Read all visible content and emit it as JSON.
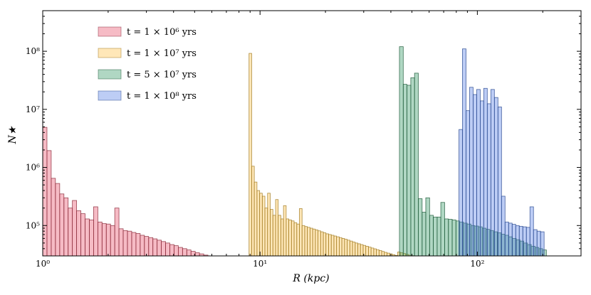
{
  "chart_data": {
    "type": "histogram",
    "title": "",
    "xlabel": "R (kpc)",
    "ylabel": "N★",
    "xscale": "log",
    "yscale": "log",
    "xlim": [
      1,
      300
    ],
    "ylim": [
      30000,
      500000000
    ],
    "x_ticks": [
      {
        "value": 1,
        "label": "10⁰"
      },
      {
        "value": 10,
        "label": "10¹"
      },
      {
        "value": 100,
        "label": "10²"
      }
    ],
    "y_ticks": [
      {
        "value": 100000,
        "label": "10⁵"
      },
      {
        "value": 1000000,
        "label": "10⁶"
      },
      {
        "value": 10000000,
        "label": "10⁷"
      },
      {
        "value": 100000000,
        "label": "10⁸"
      }
    ],
    "grid": false,
    "legend_position": "top-left",
    "series": [
      {
        "name": "t = 1 × 10⁶ yrs",
        "color": "#e8566f",
        "edge": "#8b2a3a",
        "bins": [
          [
            1.0,
            1.046,
            4900000
          ],
          [
            1.046,
            1.094,
            1950000
          ],
          [
            1.094,
            1.144,
            650000
          ],
          [
            1.144,
            1.197,
            530000
          ],
          [
            1.197,
            1.252,
            350000
          ],
          [
            1.252,
            1.309,
            300000
          ],
          [
            1.309,
            1.369,
            200000
          ],
          [
            1.369,
            1.432,
            270000
          ],
          [
            1.432,
            1.498,
            180000
          ],
          [
            1.498,
            1.567,
            160000
          ],
          [
            1.567,
            1.639,
            130000
          ],
          [
            1.639,
            1.714,
            125000
          ],
          [
            1.714,
            1.793,
            210000
          ],
          [
            1.793,
            1.875,
            115000
          ],
          [
            1.875,
            1.961,
            108000
          ],
          [
            1.961,
            2.051,
            106000
          ],
          [
            2.051,
            2.145,
            100000
          ],
          [
            2.145,
            2.243,
            200000
          ],
          [
            2.243,
            2.346,
            88000
          ],
          [
            2.346,
            2.454,
            82000
          ],
          [
            2.454,
            2.567,
            80000
          ],
          [
            2.567,
            2.685,
            76000
          ],
          [
            2.685,
            2.808,
            73000
          ],
          [
            2.808,
            2.937,
            68000
          ],
          [
            2.937,
            3.072,
            65000
          ],
          [
            3.072,
            3.213,
            62000
          ],
          [
            3.213,
            3.36,
            59000
          ],
          [
            3.36,
            3.514,
            56000
          ],
          [
            3.514,
            3.676,
            53000
          ],
          [
            3.676,
            3.844,
            50000
          ],
          [
            3.844,
            4.021,
            47000
          ],
          [
            4.021,
            4.206,
            45000
          ],
          [
            4.206,
            4.399,
            42000
          ],
          [
            4.399,
            4.601,
            40000
          ],
          [
            4.601,
            4.812,
            38000
          ],
          [
            4.812,
            5.033,
            36000
          ],
          [
            5.033,
            5.264,
            34000
          ],
          [
            5.264,
            5.506,
            32500
          ],
          [
            5.506,
            5.759,
            31000
          ]
        ]
      },
      {
        "name": "t = 1 × 10⁷ yrs",
        "color": "#ffc34d",
        "edge": "#a07a20",
        "bins": [
          [
            8.9,
            9.15,
            92000000
          ],
          [
            9.15,
            9.41,
            1050000
          ],
          [
            9.41,
            9.68,
            560000
          ],
          [
            9.68,
            9.96,
            400000
          ],
          [
            9.96,
            10.24,
            360000
          ],
          [
            10.24,
            10.53,
            320000
          ],
          [
            10.53,
            10.83,
            200000
          ],
          [
            10.83,
            11.14,
            360000
          ],
          [
            11.14,
            11.46,
            190000
          ],
          [
            11.46,
            11.79,
            150000
          ],
          [
            11.79,
            12.12,
            280000
          ],
          [
            12.12,
            12.47,
            150000
          ],
          [
            12.47,
            12.82,
            130000
          ],
          [
            12.82,
            13.19,
            220000
          ],
          [
            13.19,
            13.56,
            130000
          ],
          [
            13.56,
            13.95,
            125000
          ],
          [
            13.95,
            14.35,
            120000
          ],
          [
            14.35,
            14.76,
            112000
          ],
          [
            14.76,
            15.18,
            106000
          ],
          [
            15.18,
            15.61,
            196000
          ],
          [
            15.61,
            16.06,
            100000
          ],
          [
            16.06,
            16.51,
            96000
          ],
          [
            16.51,
            16.98,
            93000
          ],
          [
            16.98,
            17.47,
            90000
          ],
          [
            17.47,
            17.97,
            87000
          ],
          [
            17.97,
            18.48,
            84000
          ],
          [
            18.48,
            19.01,
            81000
          ],
          [
            19.01,
            19.55,
            78000
          ],
          [
            19.55,
            20.1,
            75000
          ],
          [
            20.1,
            20.68,
            72000
          ],
          [
            20.68,
            21.27,
            70000
          ],
          [
            21.27,
            21.88,
            68000
          ],
          [
            21.88,
            22.5,
            66000
          ],
          [
            22.5,
            23.14,
            64000
          ],
          [
            23.14,
            23.8,
            62000
          ],
          [
            23.8,
            24.48,
            60000
          ],
          [
            24.48,
            25.18,
            58000
          ],
          [
            25.18,
            25.9,
            56000
          ],
          [
            25.9,
            26.64,
            54000
          ],
          [
            26.64,
            27.4,
            52000
          ],
          [
            27.4,
            28.18,
            50000
          ],
          [
            28.18,
            28.98,
            48500
          ],
          [
            28.98,
            29.81,
            47000
          ],
          [
            29.81,
            30.66,
            45500
          ],
          [
            30.66,
            31.53,
            44000
          ],
          [
            31.53,
            32.43,
            42500
          ],
          [
            32.43,
            33.36,
            41000
          ],
          [
            33.36,
            34.31,
            39700
          ],
          [
            34.31,
            35.29,
            38400
          ],
          [
            35.29,
            36.3,
            37100
          ],
          [
            36.3,
            37.33,
            35800
          ],
          [
            37.33,
            38.4,
            34500
          ],
          [
            38.4,
            39.49,
            33500
          ],
          [
            39.49,
            40.62,
            32500
          ],
          [
            40.62,
            41.78,
            31500
          ],
          [
            41.78,
            42.97,
            30600
          ],
          [
            42.97,
            44.2,
            35000
          ],
          [
            44.2,
            45.46,
            34000
          ],
          [
            45.46,
            46.76,
            33000
          ],
          [
            46.76,
            48.09,
            32000
          ],
          [
            48.09,
            49.46,
            31000
          ],
          [
            49.46,
            50.88,
            30300
          ]
        ]
      },
      {
        "name": "t = 5 × 10⁷ yrs",
        "color": "#3a9a6a",
        "edge": "#1f5a3a",
        "bins": [
          [
            43.8,
            45.6,
            120000000
          ],
          [
            45.6,
            47.4,
            27000000
          ],
          [
            47.4,
            49.4,
            26000000
          ],
          [
            49.4,
            51.4,
            35000000
          ],
          [
            51.4,
            53.5,
            42000000
          ],
          [
            53.5,
            55.7,
            290000
          ],
          [
            55.7,
            57.9,
            170000
          ],
          [
            57.9,
            60.3,
            300000
          ],
          [
            60.3,
            62.7,
            150000
          ],
          [
            62.7,
            65.3,
            140000
          ],
          [
            65.3,
            67.9,
            140000
          ],
          [
            67.9,
            70.7,
            250000
          ],
          [
            70.7,
            73.6,
            130000
          ],
          [
            73.6,
            76.6,
            128000
          ],
          [
            76.6,
            79.7,
            125000
          ],
          [
            79.7,
            82.9,
            120000
          ],
          [
            82.9,
            86.3,
            115000
          ],
          [
            86.3,
            89.8,
            110000
          ],
          [
            89.8,
            93.5,
            106000
          ],
          [
            93.5,
            97.3,
            100000
          ],
          [
            97.3,
            101.3,
            98000
          ],
          [
            101.3,
            105.4,
            95000
          ],
          [
            105.4,
            109.7,
            90000
          ],
          [
            109.7,
            114.2,
            86000
          ],
          [
            114.2,
            118.8,
            82000
          ],
          [
            118.8,
            123.6,
            78000
          ],
          [
            123.6,
            128.7,
            75000
          ],
          [
            128.7,
            133.9,
            71000
          ],
          [
            133.9,
            139.4,
            68000
          ],
          [
            139.4,
            145.0,
            64000
          ],
          [
            145.0,
            151.0,
            60000
          ],
          [
            151.0,
            157.1,
            57000
          ],
          [
            157.1,
            163.5,
            54000
          ],
          [
            163.5,
            170.2,
            50000
          ],
          [
            170.2,
            177.1,
            47000
          ],
          [
            177.1,
            184.4,
            44000
          ],
          [
            184.4,
            191.9,
            42000
          ],
          [
            191.9,
            199.7,
            40000
          ],
          [
            199.7,
            207.8,
            38000
          ]
        ]
      },
      {
        "name": "t = 1 × 10⁸ yrs",
        "color": "#5a82e6",
        "edge": "#2a4a90",
        "bins": [
          [
            82.3,
            85.4,
            4500000
          ],
          [
            85.4,
            88.7,
            110000000
          ],
          [
            88.7,
            92.1,
            9500000
          ],
          [
            92.1,
            95.6,
            24000000
          ],
          [
            95.6,
            99.3,
            18000000
          ],
          [
            99.3,
            103.1,
            22000000
          ],
          [
            103.1,
            107.0,
            14000000
          ],
          [
            107.0,
            111.1,
            23000000
          ],
          [
            111.1,
            115.4,
            12500000
          ],
          [
            115.4,
            119.8,
            22000000
          ],
          [
            119.8,
            124.4,
            16000000
          ],
          [
            124.4,
            129.2,
            11000000
          ],
          [
            129.2,
            134.1,
            320000
          ],
          [
            134.1,
            139.3,
            115000
          ],
          [
            139.3,
            144.6,
            110000
          ],
          [
            144.6,
            150.2,
            105000
          ],
          [
            150.2,
            155.9,
            100000
          ],
          [
            155.9,
            161.9,
            97000
          ],
          [
            161.9,
            168.1,
            95000
          ],
          [
            168.1,
            174.6,
            93000
          ],
          [
            174.6,
            181.3,
            210000
          ],
          [
            181.3,
            188.2,
            85000
          ],
          [
            188.2,
            195.4,
            80000
          ],
          [
            195.4,
            202.9,
            78000
          ]
        ]
      }
    ]
  }
}
